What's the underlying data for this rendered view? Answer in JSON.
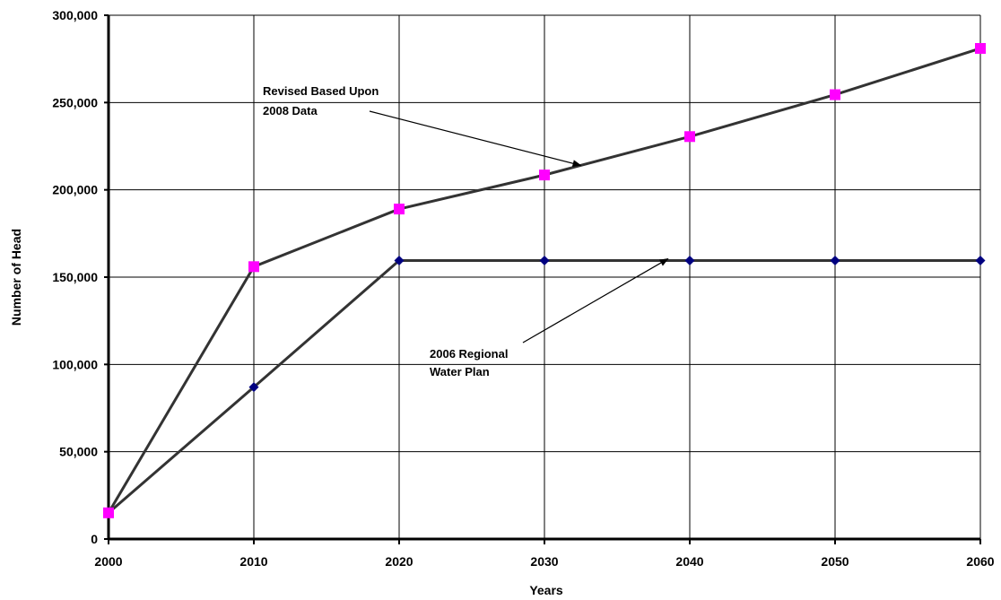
{
  "chart_data": {
    "type": "line",
    "title": "",
    "xlabel": "Years",
    "ylabel": "Number of Head",
    "x": [
      2000,
      2010,
      2020,
      2030,
      2040,
      2050,
      2060
    ],
    "x_tick_labels": [
      "2000",
      "2010",
      "2020",
      "2030",
      "2040",
      "2050",
      "2060"
    ],
    "xlim": [
      2000,
      2060
    ],
    "ylim": [
      0,
      300000
    ],
    "y_ticks": [
      0,
      50000,
      100000,
      150000,
      200000,
      250000,
      300000
    ],
    "y_tick_labels": [
      "0",
      "50,000",
      "100,000",
      "150,000",
      "200,000",
      "250,000",
      "300,000"
    ],
    "grid": true,
    "legend": "none",
    "series": [
      {
        "key": "revised",
        "values": [
          15000,
          156000,
          189000,
          208500,
          230500,
          254500,
          281000
        ],
        "line_color": "#333333",
        "marker": "square",
        "marker_color": "#ff00ff"
      },
      {
        "key": "regional",
        "values": [
          15000,
          87000,
          159500,
          159500,
          159500,
          159500,
          159500
        ],
        "line_color": "#333333",
        "marker": "diamond",
        "marker_color": "#000080"
      }
    ],
    "annotations": [
      {
        "series_key": "revised",
        "lines": [
          "Revised Based Upon",
          "2008 Data"
        ],
        "arrow_target": {
          "x": 2032.5,
          "y": 214000
        }
      },
      {
        "series_key": "regional",
        "lines": [
          "2006 Regional",
          "Water  Plan"
        ],
        "arrow_target": {
          "x": 2038.5,
          "y": 160500
        }
      }
    ]
  }
}
